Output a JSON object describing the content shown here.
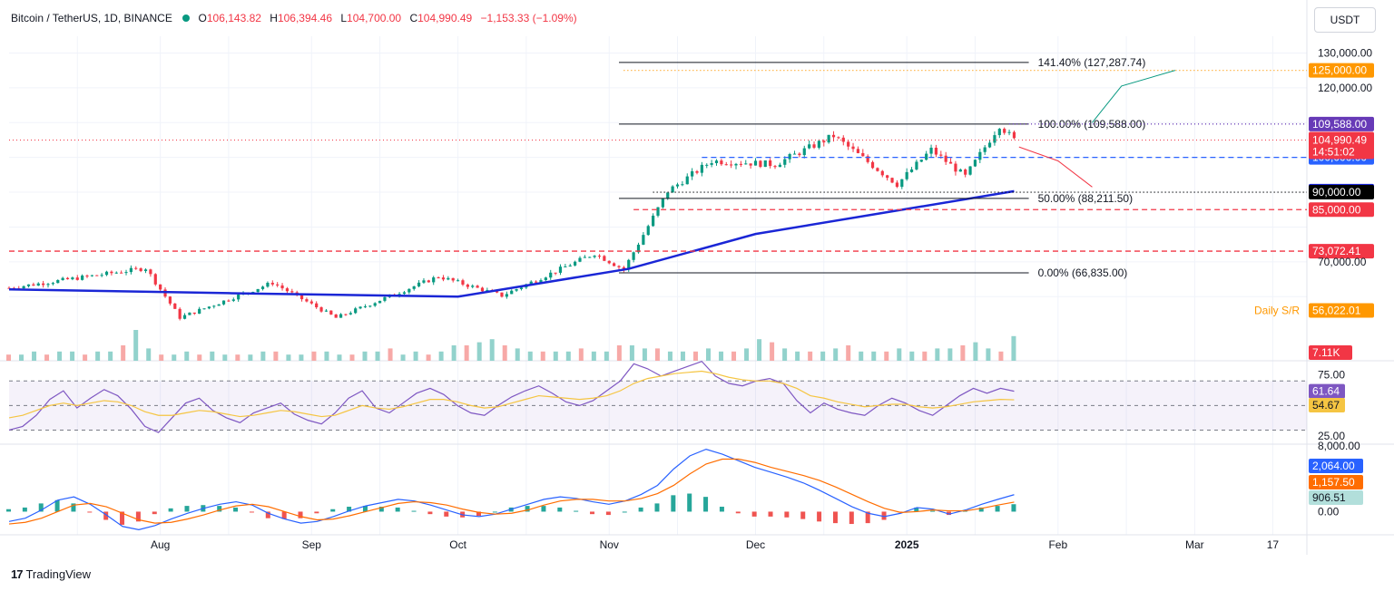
{
  "header": {
    "symbol": "Bitcoin / TetherUS, 1D, BINANCE",
    "o_label": "O",
    "o": "106,143.82",
    "h_label": "H",
    "h": "106,394.46",
    "l_label": "L",
    "l": "104,700.00",
    "c_label": "C",
    "c": "104,990.49",
    "change": "−1,153.33 (−1.09%)"
  },
  "currency_button": "USDT",
  "brand": "TradingView",
  "colors": {
    "up": "#089981",
    "down": "#f23645",
    "ma": "#1a26d6",
    "rsi": "#7e57c2",
    "rsi_ma": "#f5c542",
    "macd": "#2962ff",
    "signal": "#ff6d00",
    "orange": "#ff9800"
  },
  "chart_data": [
    {
      "type": "candlestick",
      "title": "Bitcoin / TetherUS, 1D, BINANCE",
      "x_tick_labels": [
        "Aug",
        "Sep",
        "Oct",
        "Nov",
        "Dec",
        "2025",
        "Feb",
        "Mar",
        "17"
      ],
      "y_tick_labels": [
        "130,000.00",
        "120,000.00",
        "70,000.00"
      ],
      "ylim": [
        52000,
        133500
      ],
      "grid": true,
      "date_range": [
        "2024-07-01",
        "2025-01-23"
      ],
      "key_closes": [
        {
          "date": "2024-07-01",
          "close": 62500
        },
        {
          "date": "2024-07-29",
          "close": 68200
        },
        {
          "date": "2024-08-05",
          "close": 54000
        },
        {
          "date": "2024-08-24",
          "close": 64000
        },
        {
          "date": "2024-09-06",
          "close": 53900
        },
        {
          "date": "2024-09-27",
          "close": 65800
        },
        {
          "date": "2024-10-10",
          "close": 60300
        },
        {
          "date": "2024-10-29",
          "close": 72400
        },
        {
          "date": "2024-11-04",
          "close": 67800
        },
        {
          "date": "2024-11-13",
          "close": 90300
        },
        {
          "date": "2024-11-22",
          "close": 99000
        },
        {
          "date": "2024-12-05",
          "close": 98000
        },
        {
          "date": "2024-12-17",
          "close": 106200
        },
        {
          "date": "2024-12-30",
          "close": 92300
        },
        {
          "date": "2025-01-06",
          "close": 102200
        },
        {
          "date": "2025-01-13",
          "close": 94500
        },
        {
          "date": "2025-01-20",
          "close": 109300
        },
        {
          "date": "2025-01-23",
          "close": 104990.49
        }
      ],
      "moving_average_200": [
        {
          "date": "2024-07-01",
          "value": 62100
        },
        {
          "date": "2024-08-15",
          "value": 61000
        },
        {
          "date": "2024-10-01",
          "value": 60000
        },
        {
          "date": "2024-11-05",
          "value": 68000
        },
        {
          "date": "2024-12-01",
          "value": 78000
        },
        {
          "date": "2025-01-01",
          "value": 85200
        },
        {
          "date": "2025-01-23",
          "value": 90307.69
        }
      ],
      "fibonacci": [
        {
          "label": "141.40% (127,287.74)",
          "value": 127287.74
        },
        {
          "label": "100.00% (109,588.00)",
          "value": 109588
        },
        {
          "label": "50.00% (88,211.50)",
          "value": 88211.5
        },
        {
          "label": "0.00% (66,835.00)",
          "value": 66835
        }
      ],
      "levels": [
        {
          "label": "125,000.00",
          "value": 125000,
          "color": "#ff9800",
          "style": "dotted"
        },
        {
          "label": "109,588.00",
          "value": 109588,
          "color": "#673ab7",
          "style": "dotted"
        },
        {
          "label": "100,000.00",
          "value": 100000,
          "color": "#2962ff",
          "style": "dashed"
        },
        {
          "label": "90,307.69",
          "value": 90307.69,
          "color": "#1a26d6",
          "style": "dotted"
        },
        {
          "label": "90,000.00",
          "value": 90000,
          "color": "#000000",
          "style": "dotted"
        },
        {
          "label": "85,000.00",
          "value": 85000,
          "color": "#f23645",
          "style": "dashed"
        },
        {
          "label": "73,072.41",
          "value": 73072.41,
          "color": "#f23645",
          "style": "dashed"
        }
      ],
      "price_tags": [
        {
          "label": "104,990.49",
          "sub": "14:51:02",
          "value": 104990.49,
          "color": "#f23645"
        },
        {
          "label": "56,022.01",
          "value": 56022.01,
          "color": "#ff9800",
          "caption": "Daily S/R"
        }
      ],
      "projections": [
        {
          "color": "#089981",
          "points": [
            {
              "date": "2025-02-08",
              "value": 110000
            },
            {
              "date": "2025-02-14",
              "value": 120500
            },
            {
              "date": "2025-02-25",
              "value": 125000
            }
          ]
        },
        {
          "color": "#f23645",
          "points": [
            {
              "date": "2025-01-24",
              "value": 103000
            },
            {
              "date": "2025-02-01",
              "value": 99000
            },
            {
              "date": "2025-02-08",
              "value": 91500
            }
          ]
        }
      ]
    },
    {
      "type": "bar",
      "title": "Volume",
      "last_value": "7.11K",
      "profile": [
        2,
        2,
        3,
        2,
        3,
        3,
        2,
        3,
        3,
        5,
        10,
        4,
        2,
        2,
        3,
        2,
        3,
        2,
        2,
        2,
        3,
        3,
        2,
        2,
        3,
        3,
        2,
        2,
        3,
        3,
        4,
        2,
        3,
        2,
        3,
        5,
        5,
        6,
        7,
        5,
        4,
        3,
        3,
        3,
        3,
        4,
        3,
        3,
        5,
        5,
        4,
        4,
        3,
        3,
        3,
        4,
        3,
        3,
        4,
        7,
        6,
        4,
        3,
        3,
        3,
        4,
        5,
        3,
        3,
        3,
        4,
        3,
        3,
        4,
        4,
        5,
        6,
        4,
        3,
        8
      ]
    },
    {
      "type": "line",
      "title": "RSI",
      "ylim": [
        20,
        85
      ],
      "y_tick_labels": [
        "75.00",
        "25.00"
      ],
      "series": [
        {
          "name": "RSI",
          "color": "#7e57c2",
          "last": "61.64",
          "values": [
            30,
            33,
            42,
            55,
            62,
            48,
            56,
            63,
            58,
            47,
            33,
            28,
            40,
            52,
            56,
            46,
            40,
            36,
            44,
            48,
            52,
            43,
            38,
            35,
            44,
            56,
            62,
            48,
            44,
            52,
            60,
            64,
            59,
            50,
            44,
            42,
            50,
            57,
            62,
            66,
            60,
            53,
            50,
            54,
            62,
            70,
            84,
            80,
            74,
            78,
            82,
            86,
            74,
            68,
            66,
            70,
            72,
            68,
            54,
            44,
            52,
            47,
            44,
            42,
            50,
            56,
            52,
            46,
            42,
            50,
            58,
            64,
            60,
            64,
            61.64
          ]
        },
        {
          "name": "RSI MA",
          "color": "#f5c542",
          "last": "54.67",
          "values": [
            40,
            42,
            46,
            50,
            52,
            50,
            52,
            54,
            53,
            50,
            45,
            42,
            42,
            44,
            46,
            45,
            43,
            41,
            42,
            44,
            46,
            45,
            43,
            41,
            42,
            46,
            50,
            48,
            47,
            49,
            52,
            55,
            55,
            53,
            50,
            48,
            49,
            52,
            55,
            58,
            57,
            56,
            55,
            56,
            58,
            62,
            68,
            72,
            74,
            76,
            77,
            78,
            76,
            73,
            71,
            70,
            70,
            68,
            64,
            58,
            56,
            53,
            51,
            49,
            50,
            51,
            51,
            49,
            48,
            49,
            51,
            53,
            54,
            55,
            54.67
          ]
        }
      ]
    },
    {
      "type": "line",
      "title": "MACD",
      "y_tick_labels": [
        "8,000.00",
        "0.00"
      ],
      "series": [
        {
          "name": "MACD",
          "color": "#2962ff",
          "last": "2,064.00",
          "values": [
            -1200,
            -800,
            200,
            1400,
            1800,
            900,
            -400,
            -1800,
            -2200,
            -1700,
            -900,
            -200,
            400,
            900,
            1200,
            800,
            -200,
            -900,
            -1400,
            -1200,
            -600,
            100,
            700,
            1100,
            1500,
            1300,
            800,
            200,
            -400,
            -600,
            -300,
            300,
            900,
            1500,
            1800,
            1600,
            1200,
            900,
            1300,
            2100,
            3200,
            5200,
            6800,
            7600,
            7000,
            6200,
            5400,
            4800,
            4200,
            3500,
            2600,
            1600,
            600,
            -200,
            -600,
            -200,
            500,
            300,
            -300,
            200,
            900,
            1500,
            2064
          ]
        },
        {
          "name": "Signal",
          "color": "#ff6d00",
          "last": "1,157.50",
          "values": [
            -1500,
            -1300,
            -800,
            0,
            800,
            1000,
            600,
            -200,
            -1000,
            -1400,
            -1300,
            -900,
            -400,
            200,
            700,
            900,
            600,
            0,
            -600,
            -1000,
            -900,
            -500,
            0,
            500,
            1000,
            1200,
            1100,
            800,
            300,
            -100,
            -300,
            -200,
            200,
            800,
            1300,
            1500,
            1500,
            1300,
            1300,
            1600,
            2200,
            3200,
            4600,
            5800,
            6400,
            6400,
            6000,
            5400,
            4900,
            4400,
            3800,
            3000,
            2100,
            1200,
            400,
            -100,
            0,
            200,
            100,
            100,
            400,
            800,
            1157.5
          ]
        },
        {
          "name": "Histogram",
          "color": "#26a69a",
          "last": "906.51"
        }
      ]
    }
  ]
}
